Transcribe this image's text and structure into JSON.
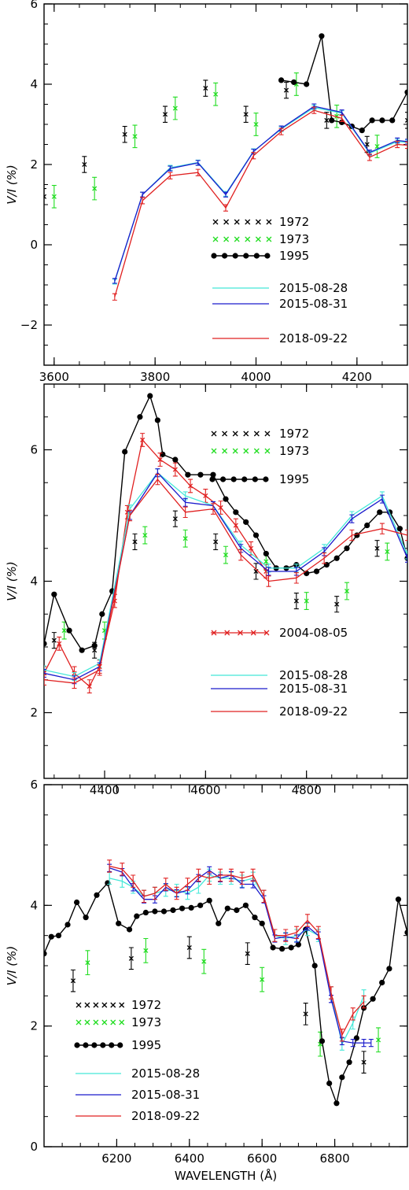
{
  "colors": {
    "y1972": "#000000",
    "y1973": "#22dd22",
    "y1995": "#000000",
    "d20150828": "#44e8d8",
    "d20150831": "#1a1acc",
    "d20180922": "#e02020",
    "d20040805": "#e02020"
  },
  "chart_data": [
    {
      "type": "line",
      "xlabel": "",
      "ylabel": "V/I (%)",
      "xlim": [
        3580,
        4300
      ],
      "ylim": [
        -3,
        6
      ],
      "x_ticks": [
        3600,
        3800,
        4000,
        4200
      ],
      "y_ticks": [
        -2,
        0,
        2,
        4,
        6
      ],
      "legend": {
        "placement": "right-center",
        "entries": [
          {
            "name": "1972",
            "key": "y1972",
            "style": "x"
          },
          {
            "name": "1973",
            "key": "y1973",
            "style": "x"
          },
          {
            "name": "1995",
            "key": "y1995",
            "style": "dot"
          },
          {
            "name": "2015-08-28",
            "key": "d20150828",
            "style": "line"
          },
          {
            "name": "2015-08-31",
            "key": "d20150831",
            "style": "line"
          },
          {
            "name": "2018-09-22",
            "key": "d20180922",
            "style": "line"
          }
        ]
      },
      "series": [
        {
          "name": "1972",
          "key": "y1972",
          "style": "x",
          "err": 0.2,
          "x": [
            3580,
            3660,
            3740,
            3820,
            3900,
            3980,
            4060,
            4140,
            4220,
            4300
          ],
          "y": [
            1.2,
            2.0,
            2.75,
            3.25,
            3.9,
            3.25,
            3.85,
            3.1,
            2.5,
            3.1
          ]
        },
        {
          "name": "1973",
          "key": "y1973",
          "style": "x",
          "err": 0.28,
          "x": [
            3600,
            3680,
            3760,
            3840,
            3920,
            4000,
            4080,
            4160,
            4240
          ],
          "y": [
            1.2,
            1.4,
            2.7,
            3.4,
            3.75,
            3.0,
            4.0,
            3.2,
            2.45
          ]
        },
        {
          "name": "1995",
          "key": "y1995",
          "style": "dot",
          "x": [
            4050,
            4075,
            4100,
            4130,
            4150,
            4170,
            4190,
            4210,
            4230,
            4250,
            4270,
            4300
          ],
          "y": [
            4.1,
            4.05,
            4.0,
            5.2,
            3.1,
            3.05,
            2.95,
            2.85,
            3.1,
            3.1,
            3.1,
            3.8
          ]
        },
        {
          "name": "2015-08-28",
          "key": "d20150828",
          "style": "line",
          "err": 0.06,
          "x": [
            3720,
            3775,
            3830,
            3885,
            3940,
            3995,
            4050,
            4115,
            4170,
            4225,
            4280,
            4300
          ],
          "y": [
            -0.92,
            1.25,
            1.92,
            2.05,
            1.27,
            2.33,
            2.88,
            3.42,
            3.28,
            2.28,
            2.57,
            2.55
          ]
        },
        {
          "name": "2015-08-31",
          "key": "d20150831",
          "style": "line",
          "err": 0.06,
          "x": [
            3720,
            3775,
            3830,
            3885,
            3940,
            3995,
            4050,
            4115,
            4170,
            4225,
            4280,
            4300
          ],
          "y": [
            -0.9,
            1.25,
            1.9,
            2.04,
            1.25,
            2.32,
            2.9,
            3.45,
            3.3,
            2.3,
            2.6,
            2.57
          ]
        },
        {
          "name": "2018-09-22",
          "key": "d20180922",
          "style": "line",
          "err": 0.08,
          "x": [
            3720,
            3775,
            3830,
            3885,
            3940,
            3995,
            4050,
            4115,
            4170,
            4225,
            4280,
            4300
          ],
          "y": [
            -1.3,
            1.1,
            1.72,
            1.8,
            0.92,
            2.22,
            2.82,
            3.35,
            3.15,
            2.18,
            2.5,
            2.48
          ]
        }
      ]
    },
    {
      "type": "line",
      "xlabel": "",
      "ylabel": "V/I (%)",
      "xlim": [
        4280,
        5000
      ],
      "ylim": [
        1,
        7
      ],
      "x_ticks": [
        4400,
        4600,
        4800
      ],
      "y_ticks": [
        2,
        4,
        6
      ],
      "legend": {
        "placement": "right",
        "entries": [
          {
            "name": "1972",
            "key": "y1972",
            "style": "x"
          },
          {
            "name": "1973",
            "key": "y1973",
            "style": "x"
          },
          {
            "name": "1995",
            "key": "y1995",
            "style": "dot"
          },
          {
            "name": "2004-08-05",
            "key": "d20040805",
            "style": "xline"
          },
          {
            "name": "2015-08-28",
            "key": "d20150828",
            "style": "line"
          },
          {
            "name": "2015-08-31",
            "key": "d20150831",
            "style": "line"
          },
          {
            "name": "2018-09-22",
            "key": "d20180922",
            "style": "line"
          }
        ]
      },
      "series": [
        {
          "name": "1972",
          "key": "y1972",
          "style": "x",
          "err": 0.12,
          "x": [
            4300,
            4380,
            4460,
            4540,
            4620,
            4700,
            4780,
            4860,
            4940
          ],
          "y": [
            3.1,
            2.95,
            4.6,
            4.95,
            4.6,
            4.15,
            3.7,
            3.65,
            4.5
          ]
        },
        {
          "name": "1973",
          "key": "y1973",
          "style": "x",
          "err": 0.13,
          "x": [
            4320,
            4400,
            4480,
            4560,
            4640,
            4720,
            4800,
            4880,
            4960
          ],
          "y": [
            3.25,
            3.25,
            4.7,
            4.65,
            4.4,
            4.3,
            3.7,
            3.85,
            4.45
          ]
        },
        {
          "name": "1995",
          "key": "y1995",
          "style": "dot",
          "x": [
            4280,
            4300,
            4330,
            4355,
            4380,
            4395,
            4415,
            4440,
            4470,
            4490,
            4505,
            4515,
            4540,
            4565,
            4590,
            4615,
            4640,
            4660,
            4680,
            4700,
            4720,
            4740,
            4760,
            4780,
            4800,
            4820,
            4840,
            4860,
            4880,
            4900,
            4920,
            4945,
            4965,
            4985,
            5000
          ],
          "y": [
            3.05,
            3.8,
            3.25,
            2.95,
            3.02,
            3.5,
            3.85,
            5.97,
            6.5,
            6.82,
            6.45,
            5.93,
            5.85,
            5.62,
            5.62,
            5.62,
            5.25,
            5.05,
            4.9,
            4.7,
            4.42,
            4.2,
            4.2,
            4.25,
            4.12,
            4.15,
            4.25,
            4.35,
            4.5,
            4.7,
            4.85,
            5.05,
            5.05,
            4.8,
            4.35
          ]
        },
        {
          "name": "2004-08-05",
          "key": "d20040805",
          "style": "xline",
          "err": 0.1,
          "x": [
            4280,
            4310,
            4340,
            4370,
            4390,
            4420,
            4445,
            4475,
            4510,
            4540,
            4570,
            4600,
            4630,
            4660,
            4690,
            4720
          ],
          "y": [
            2.6,
            3.05,
            2.6,
            2.4,
            2.7,
            3.7,
            5.05,
            6.15,
            5.85,
            5.7,
            5.45,
            5.3,
            5.12,
            4.85,
            4.5,
            4.15
          ]
        },
        {
          "name": "2015-08-28",
          "key": "d20150828",
          "style": "line",
          "err": 0.06,
          "x": [
            4280,
            4340,
            4390,
            4450,
            4505,
            4560,
            4615,
            4670,
            4725,
            4780,
            4835,
            4890,
            4950,
            5000
          ],
          "y": [
            2.65,
            2.55,
            2.75,
            5.1,
            5.65,
            5.3,
            5.15,
            4.55,
            4.2,
            4.2,
            4.5,
            5.0,
            5.3,
            4.4
          ]
        },
        {
          "name": "2015-08-31",
          "key": "d20150831",
          "style": "line",
          "err": 0.06,
          "x": [
            4280,
            4340,
            4390,
            4450,
            4505,
            4560,
            4615,
            4670,
            4725,
            4780,
            4835,
            4890,
            4950,
            5000
          ],
          "y": [
            2.6,
            2.5,
            2.7,
            5.0,
            5.65,
            5.2,
            5.15,
            4.5,
            4.15,
            4.15,
            4.45,
            4.95,
            5.25,
            4.35
          ]
        },
        {
          "name": "2018-09-22",
          "key": "d20180922",
          "style": "line",
          "err": 0.08,
          "x": [
            4280,
            4340,
            4390,
            4450,
            4505,
            4560,
            4615,
            4670,
            4725,
            4780,
            4835,
            4890,
            4950,
            5000
          ],
          "y": [
            2.5,
            2.45,
            2.65,
            5.0,
            5.55,
            5.05,
            5.1,
            4.4,
            4.0,
            4.05,
            4.35,
            4.7,
            4.8,
            4.7
          ]
        }
      ]
    },
    {
      "type": "line",
      "xlabel": "WAVELENGTH (Å)",
      "ylabel": "V/I (%)",
      "xlim": [
        6000,
        7000
      ],
      "ylim": [
        0,
        6
      ],
      "x_ticks": [
        6200,
        6400,
        6600,
        6800
      ],
      "y_ticks": [
        0,
        2,
        4,
        6
      ],
      "legend": {
        "placement": "bottom-left",
        "entries": [
          {
            "name": "1972",
            "key": "y1972",
            "style": "x"
          },
          {
            "name": "1973",
            "key": "y1973",
            "style": "x"
          },
          {
            "name": "1995",
            "key": "y1995",
            "style": "dot"
          },
          {
            "name": "2015-08-28",
            "key": "d20150828",
            "style": "line"
          },
          {
            "name": "2015-08-31",
            "key": "d20150831",
            "style": "line"
          },
          {
            "name": "2018-09-22",
            "key": "d20180922",
            "style": "line"
          }
        ]
      },
      "series": [
        {
          "name": "1972",
          "key": "y1972",
          "style": "x",
          "err": 0.18,
          "x": [
            6080,
            6240,
            6400,
            6560,
            6720,
            6880
          ],
          "y": [
            2.75,
            3.12,
            3.3,
            3.2,
            2.2,
            1.4
          ]
        },
        {
          "name": "1973",
          "key": "y1973",
          "style": "x",
          "err": 0.2,
          "x": [
            6120,
            6280,
            6440,
            6600,
            6760,
            6920
          ],
          "y": [
            3.05,
            3.25,
            3.07,
            2.77,
            1.7,
            1.77
          ]
        },
        {
          "name": "1995",
          "key": "y1995",
          "style": "dot",
          "x": [
            6000,
            6020,
            6040,
            6065,
            6090,
            6115,
            6145,
            6175,
            6205,
            6235,
            6255,
            6280,
            6305,
            6330,
            6355,
            6380,
            6405,
            6430,
            6455,
            6480,
            6505,
            6530,
            6555,
            6580,
            6600,
            6630,
            6655,
            6680,
            6700,
            6720,
            6745,
            6765,
            6785,
            6805,
            6820,
            6840,
            6860,
            6880,
            6905,
            6930,
            6950,
            6975,
            7000
          ],
          "y": [
            3.2,
            3.48,
            3.5,
            3.68,
            4.05,
            3.8,
            4.17,
            4.37,
            3.7,
            3.6,
            3.82,
            3.88,
            3.9,
            3.9,
            3.92,
            3.95,
            3.96,
            4.0,
            4.08,
            3.7,
            3.95,
            3.92,
            4.0,
            3.8,
            3.7,
            3.3,
            3.28,
            3.3,
            3.35,
            3.6,
            3.0,
            1.75,
            1.05,
            0.72,
            1.15,
            1.4,
            1.8,
            2.3,
            2.45,
            2.72,
            2.95,
            4.1,
            3.55
          ]
        },
        {
          "name": "2015-08-28",
          "key": "d20150828",
          "style": "line",
          "err": 0.1,
          "x": [
            6180,
            6215,
            6245,
            6275,
            6305,
            6335,
            6365,
            6395,
            6425,
            6455,
            6485,
            6515,
            6545,
            6575,
            6605,
            6635,
            6665,
            6695,
            6725,
            6755,
            6790,
            6820,
            6850,
            6880
          ],
          "y": [
            4.45,
            4.4,
            4.3,
            4.15,
            4.2,
            4.25,
            4.25,
            4.2,
            4.3,
            4.5,
            4.45,
            4.45,
            4.4,
            4.45,
            4.15,
            3.5,
            3.45,
            3.5,
            3.6,
            3.5,
            2.55,
            1.7,
            2.05,
            2.5
          ]
        },
        {
          "name": "2015-08-31",
          "key": "d20150831",
          "style": "line",
          "err": 0.06,
          "x": [
            6180,
            6215,
            6245,
            6275,
            6305,
            6335,
            6365,
            6395,
            6425,
            6455,
            6485,
            6515,
            6545,
            6575,
            6605,
            6635,
            6665,
            6695,
            6725,
            6755,
            6790,
            6820,
            6850,
            6880,
            6900
          ],
          "y": [
            4.62,
            4.55,
            4.3,
            4.1,
            4.1,
            4.3,
            4.2,
            4.25,
            4.45,
            4.58,
            4.45,
            4.5,
            4.35,
            4.35,
            4.1,
            3.45,
            3.48,
            3.45,
            3.65,
            3.5,
            2.45,
            1.75,
            1.72,
            1.72,
            1.72
          ]
        },
        {
          "name": "2018-09-22",
          "key": "d20180922",
          "style": "line",
          "err": 0.1,
          "x": [
            6180,
            6215,
            6245,
            6275,
            6305,
            6335,
            6365,
            6395,
            6425,
            6455,
            6485,
            6515,
            6545,
            6575,
            6605,
            6635,
            6665,
            6695,
            6725,
            6755,
            6790,
            6820,
            6850,
            6880
          ],
          "y": [
            4.65,
            4.6,
            4.4,
            4.15,
            4.2,
            4.35,
            4.2,
            4.35,
            4.5,
            4.45,
            4.5,
            4.5,
            4.45,
            4.5,
            4.15,
            3.5,
            3.5,
            3.55,
            3.75,
            3.55,
            2.55,
            1.85,
            2.2,
            2.4
          ]
        }
      ]
    }
  ]
}
